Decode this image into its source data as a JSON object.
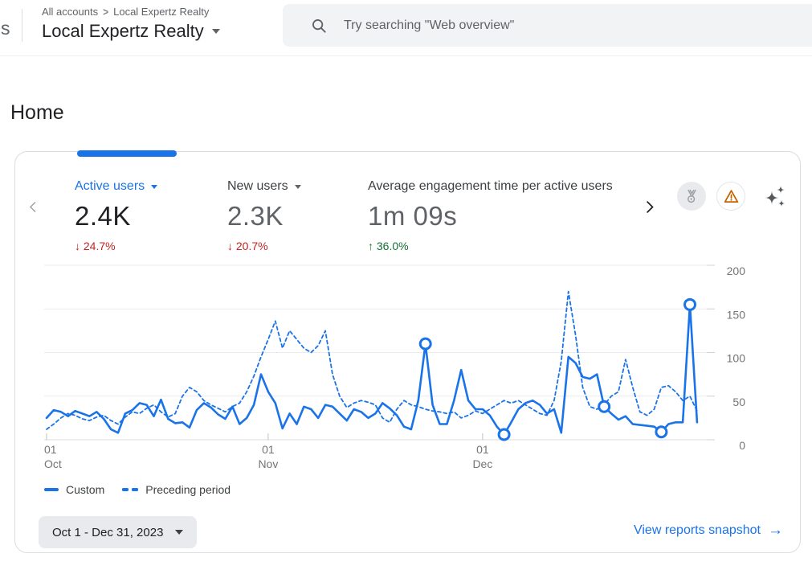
{
  "colors": {
    "accent": "#1a73e8",
    "text_primary": "#202124",
    "text_secondary": "#5f6368",
    "negative": "#c5221f",
    "positive": "#137333",
    "warning": "#c26401",
    "grid": "#e9ebee",
    "axis_label": "#757575"
  },
  "header": {
    "logo_fragment": "s",
    "breadcrumb_root": "All accounts",
    "breadcrumb_separator": ">",
    "breadcrumb_current": "Local Expertz Realty",
    "property_name": "Local Expertz Realty",
    "search_placeholder": "Try searching \"Web overview\""
  },
  "page": {
    "title": "Home"
  },
  "carousel": {
    "metrics": [
      {
        "label": "Active users",
        "value": "2.4K",
        "delta_arrow": "↓",
        "delta_value": "24.7%",
        "direction": "down",
        "selected": true
      },
      {
        "label": "New users",
        "value": "2.3K",
        "delta_arrow": "↓",
        "delta_value": "20.7%",
        "direction": "down",
        "selected": false
      },
      {
        "label": "Average engagement time per active users",
        "value": "1m 09s",
        "delta_arrow": "↑",
        "delta_value": "36.0%",
        "direction": "up",
        "selected": false
      }
    ]
  },
  "icon_names": [
    "search-icon",
    "chevron-left-icon",
    "chevron-right-icon",
    "medal-badge-icon",
    "warning-triangle-icon",
    "sparkles-icon",
    "dropdown-caret-icon",
    "arrow-right-icon"
  ],
  "chart_data": {
    "type": "line",
    "title": "Active users over time",
    "ylim": [
      0,
      200
    ],
    "y_ticks": [
      0,
      50,
      100,
      150,
      200
    ],
    "x_ticks": [
      {
        "day_index": 0,
        "line1": "01",
        "line2": "Oct"
      },
      {
        "day_index": 31,
        "line1": "01",
        "line2": "Nov"
      },
      {
        "day_index": 61,
        "line1": "01",
        "line2": "Dec"
      }
    ],
    "x_range_days": 92,
    "grid": true,
    "legend_position": "bottom-left",
    "series": [
      {
        "name": "Custom",
        "style": "solid",
        "values": [
          25,
          34,
          32,
          27,
          33,
          30,
          27,
          32,
          24,
          12,
          8,
          30,
          34,
          42,
          40,
          27,
          46,
          24,
          19,
          20,
          14,
          34,
          42,
          37,
          29,
          24,
          38,
          18,
          25,
          40,
          75,
          55,
          42,
          13,
          30,
          18,
          38,
          35,
          25,
          40,
          38,
          30,
          22,
          35,
          32,
          25,
          30,
          42,
          36,
          28,
          15,
          12,
          45,
          110,
          40,
          18,
          18,
          45,
          80,
          45,
          35,
          35,
          28,
          15,
          6,
          20,
          35,
          42,
          45,
          40,
          30,
          35,
          8,
          95,
          88,
          72,
          70,
          75,
          38,
          30,
          23,
          27,
          18,
          17,
          16,
          15,
          9,
          18,
          20,
          20,
          155,
          20
        ]
      },
      {
        "name": "Preceding period",
        "style": "dashed",
        "values": [
          12,
          18,
          25,
          30,
          28,
          24,
          22,
          26,
          28,
          22,
          18,
          26,
          32,
          30,
          36,
          40,
          32,
          26,
          30,
          50,
          60,
          55,
          45,
          40,
          36,
          32,
          38,
          42,
          55,
          73,
          95,
          115,
          136,
          105,
          125,
          115,
          105,
          100,
          108,
          125,
          75,
          50,
          37,
          42,
          45,
          43,
          40,
          25,
          20,
          35,
          45,
          40,
          38,
          35,
          33,
          32,
          30,
          32,
          25,
          28,
          33,
          30,
          35,
          40,
          45,
          42,
          45,
          40,
          35,
          30,
          28,
          45,
          90,
          170,
          120,
          60,
          38,
          35,
          40,
          50,
          55,
          92,
          60,
          32,
          28,
          35,
          60,
          62,
          55,
          45,
          50,
          33
        ]
      }
    ],
    "markers": [
      {
        "series": "Custom",
        "day_index": 53,
        "value": 110
      },
      {
        "series": "Custom",
        "day_index": 64,
        "value": 6
      },
      {
        "series": "Custom",
        "day_index": 78,
        "value": 38
      },
      {
        "series": "Custom",
        "day_index": 86,
        "value": 9
      },
      {
        "series": "Custom",
        "day_index": 90,
        "value": 155
      }
    ]
  },
  "footer": {
    "date_range": "Oct 1 - Dec 31, 2023",
    "view_reports_label": "View reports snapshot",
    "arrow": "→"
  }
}
